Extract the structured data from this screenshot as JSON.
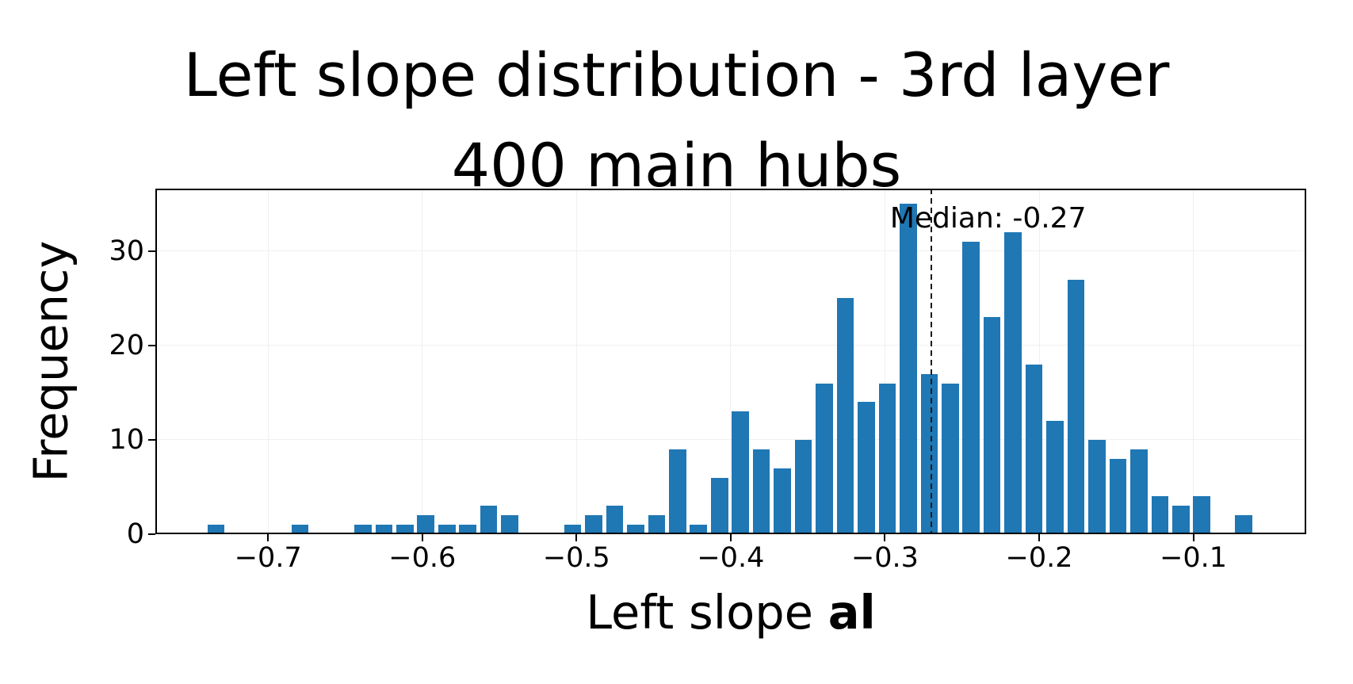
{
  "figure": {
    "title_line1": "Left slope distribution - 3rd layer",
    "title_line2": "400 main hubs",
    "ylabel": "Frequency",
    "xlabel_prefix": "Left slope ",
    "xlabel_bold": "al",
    "median_label": "Median: -0.27"
  },
  "colors": {
    "bar": "#1f77b4",
    "grid": "#f0f0f0",
    "spine": "#000000",
    "median_line": "#1a1a1a",
    "background": "#ffffff",
    "text": "#000000"
  },
  "chart_data": {
    "type": "bar",
    "subtype": "histogram",
    "title": "Left slope distribution - 3rd layer\n400 main hubs",
    "xlabel": "Left slope al",
    "ylabel": "Frequency",
    "total_samples": 400,
    "bin_start": -0.7405,
    "bin_width": 0.0136,
    "counts": [
      1,
      0,
      0,
      0,
      1,
      0,
      0,
      1,
      1,
      1,
      2,
      1,
      1,
      3,
      2,
      0,
      0,
      1,
      2,
      3,
      1,
      2,
      9,
      1,
      6,
      13,
      9,
      7,
      10,
      16,
      25,
      14,
      16,
      35,
      17,
      16,
      31,
      23,
      32,
      18,
      12,
      27,
      10,
      8,
      9,
      4,
      3,
      4,
      0,
      2
    ],
    "median": -0.27,
    "median_label": "Median: -0.27",
    "xlim": [
      -0.7731,
      -0.0268
    ],
    "ylim": [
      0,
      36.62
    ],
    "x_ticks": [
      -0.7,
      -0.6,
      -0.5,
      -0.4,
      -0.3,
      -0.2,
      -0.1
    ],
    "x_tick_labels": [
      "−0.7",
      "−0.6",
      "−0.5",
      "−0.4",
      "−0.3",
      "−0.2",
      "−0.1"
    ],
    "y_ticks": [
      0,
      10,
      20,
      30
    ],
    "y_tick_labels": [
      "0",
      "10",
      "20",
      "30"
    ],
    "grid": true,
    "legend": null,
    "bar_color": "#1f77b4",
    "bar_rwidth": 0.82
  }
}
